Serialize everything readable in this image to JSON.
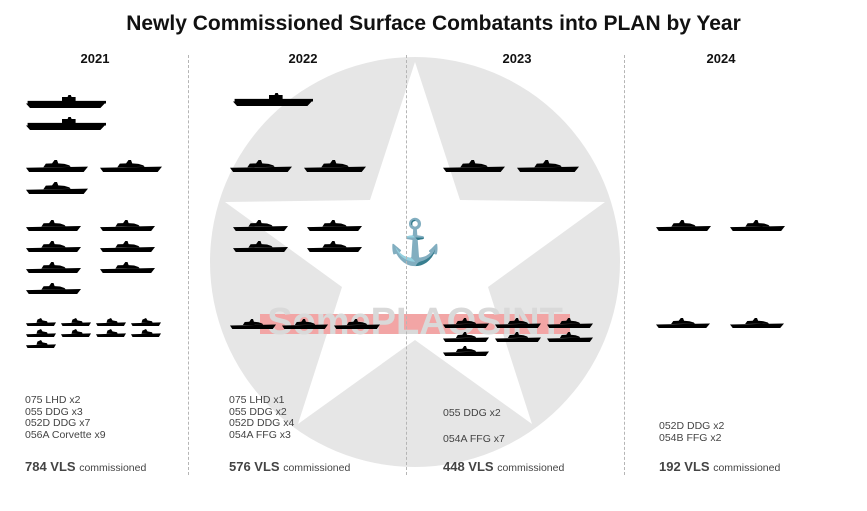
{
  "title": "Newly Commissioned Surface Combatants into PLAN by Year",
  "watermark_text": "SomePLAOSINT",
  "colors": {
    "ship": "#000000",
    "watermark_bg": "#e6e6e6",
    "watermark_star": "#ffffff",
    "watermark_band": "#f2a5a5",
    "divider": "#b5b5b5"
  },
  "chart_data": {
    "type": "table",
    "title": "Newly Commissioned Surface Combatants into PLAN by Year",
    "years": [
      {
        "year": "2021",
        "classes": [
          {
            "label": "075 LHD x2",
            "type": "075 LHD",
            "count": 2
          },
          {
            "label": "055 DDG x3",
            "type": "055 DDG",
            "count": 3
          },
          {
            "label": "052D DDG x7",
            "type": "052D DDG",
            "count": 7
          },
          {
            "label": "056A Corvette x9",
            "type": "056A Corvette",
            "count": 9
          }
        ],
        "vls": "784 VLS",
        "vls_value": 784,
        "vls_suffix": "commissioned"
      },
      {
        "year": "2022",
        "classes": [
          {
            "label": "075 LHD x1",
            "type": "075 LHD",
            "count": 1
          },
          {
            "label": "055 DDG x2",
            "type": "055 DDG",
            "count": 2
          },
          {
            "label": "052D DDG x4",
            "type": "052D DDG",
            "count": 4
          },
          {
            "label": "054A FFG x3",
            "type": "054A FFG",
            "count": 3
          }
        ],
        "vls": "576 VLS",
        "vls_value": 576,
        "vls_suffix": "commissioned"
      },
      {
        "year": "2023",
        "classes": [
          {
            "label": "055 DDG x2",
            "type": "055 DDG",
            "count": 2
          },
          {
            "label": "054A FFG x7",
            "type": "054A FFG",
            "count": 7
          }
        ],
        "vls": "448 VLS",
        "vls_value": 448,
        "vls_suffix": "commissioned"
      },
      {
        "year": "2024",
        "classes": [
          {
            "label": "052D DDG x2",
            "type": "052D DDG",
            "count": 2
          },
          {
            "label": "054B FFG x2",
            "type": "054B FFG",
            "count": 2
          }
        ],
        "vls": "192 VLS",
        "vls_value": 192,
        "vls_suffix": "commissioned"
      }
    ]
  }
}
